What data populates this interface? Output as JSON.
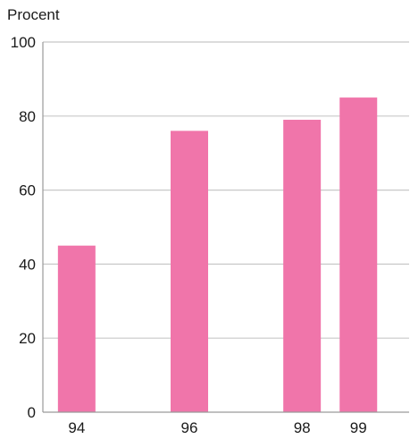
{
  "chart_data": {
    "type": "bar",
    "ylabel": "Procent",
    "categories": [
      "94",
      "96",
      "98",
      "99"
    ],
    "x": [
      94,
      96,
      98,
      99
    ],
    "values": [
      45,
      76,
      79,
      85
    ],
    "ylim": [
      0,
      100
    ],
    "yticks": [
      0,
      20,
      40,
      60,
      80,
      100
    ],
    "grid": true,
    "colors": {
      "bar": "#f075aa",
      "grid": "#c8c8c8",
      "axis": "#9a9a9a"
    }
  }
}
